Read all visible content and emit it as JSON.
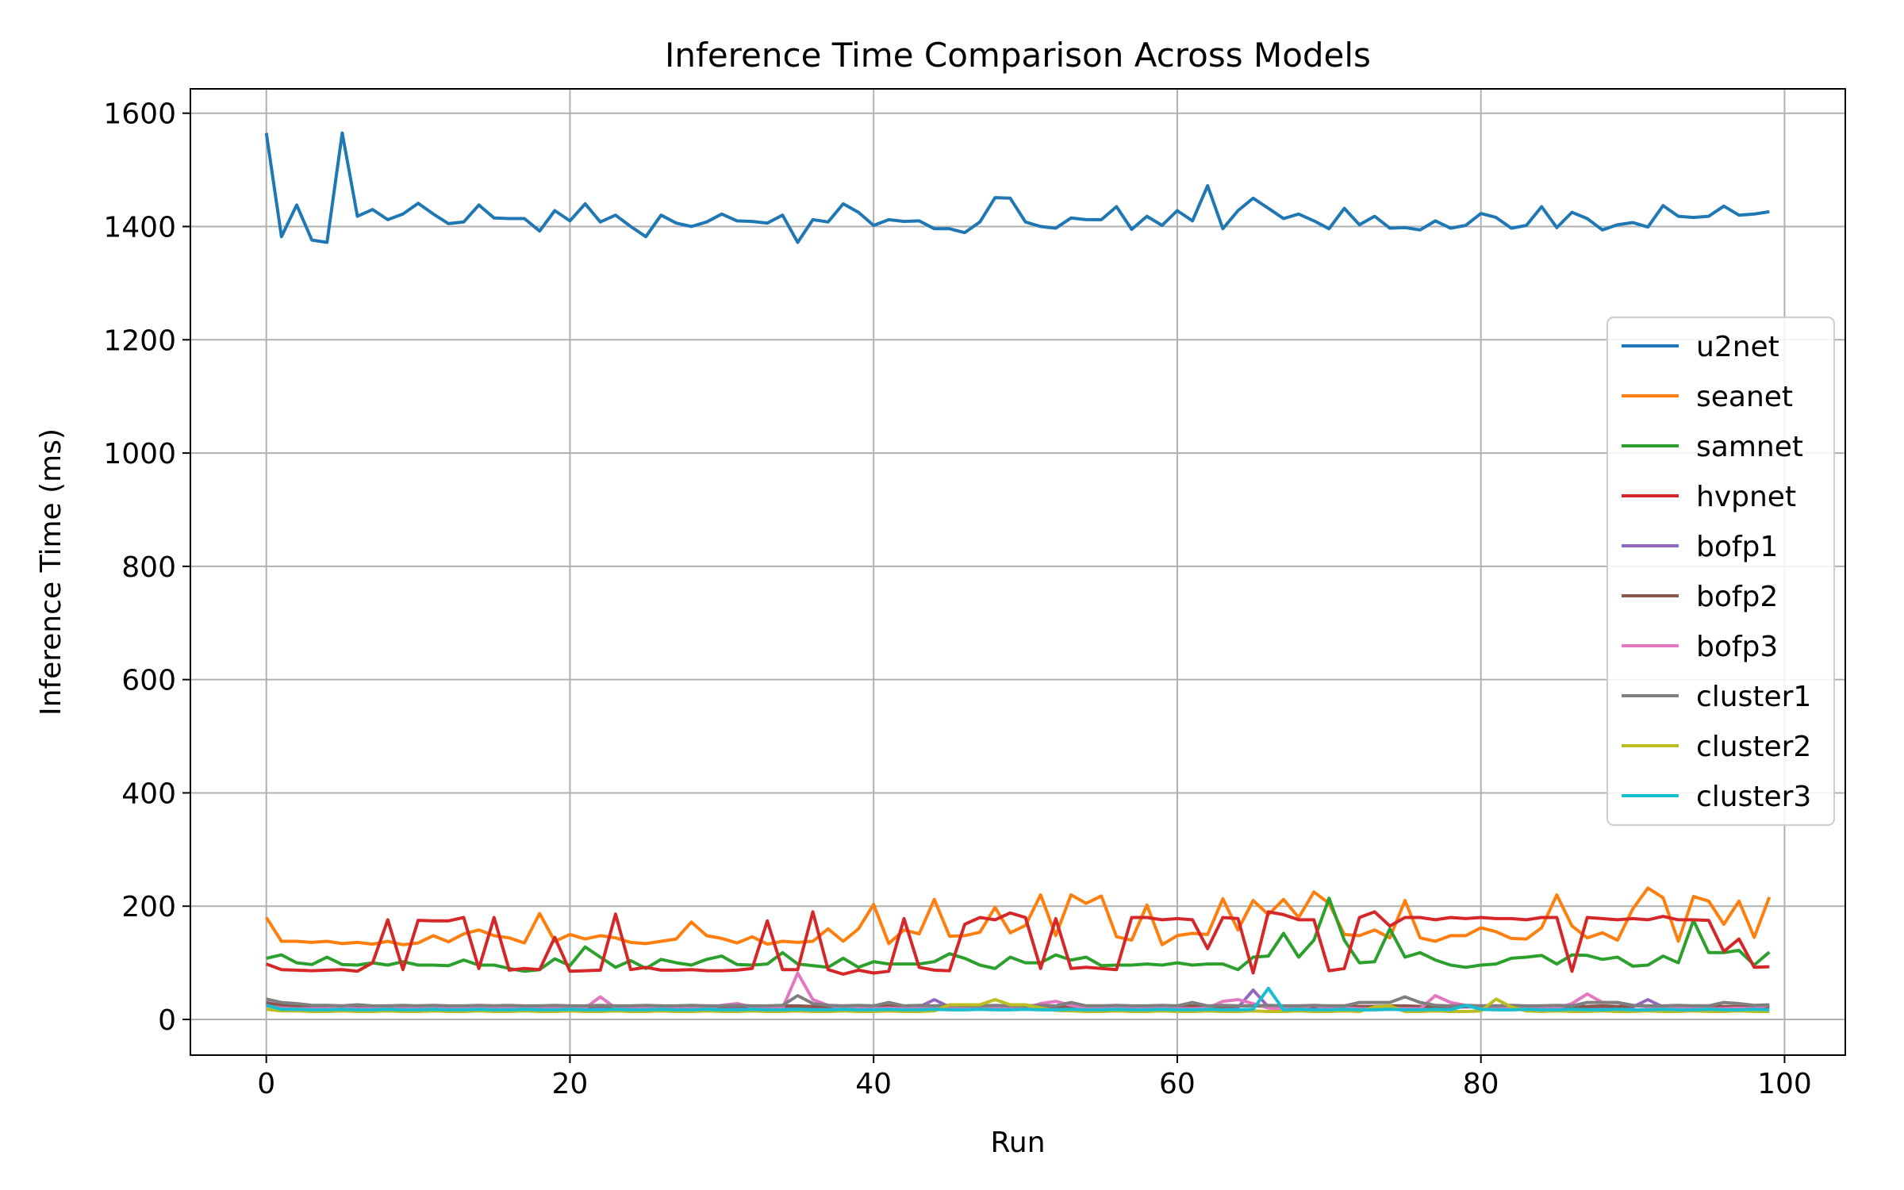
{
  "chart_data": {
    "type": "line",
    "title": "Inference Time Comparison Across Models",
    "xlabel": "Run",
    "ylabel": "Inference Time (ms)",
    "xlim": [
      -5,
      104
    ],
    "ylim": [
      -63,
      1643
    ],
    "xticks": [
      0,
      20,
      40,
      60,
      80,
      100
    ],
    "yticks": [
      0,
      200,
      400,
      600,
      800,
      1000,
      1200,
      1400,
      1600
    ],
    "grid": true,
    "legend": "center-right",
    "series": [
      {
        "name": "u2net",
        "color": "#1f77b4",
        "values": [
          1565,
          1382,
          1438,
          1376,
          1372,
          1565,
          1418,
          1430,
          1412,
          1422,
          1441,
          1422,
          1405,
          1408,
          1438,
          1415,
          1414,
          1414,
          1392,
          1428,
          1410,
          1440,
          1408,
          1420,
          1400,
          1382,
          1420,
          1406,
          1400,
          1408,
          1422,
          1410,
          1409,
          1406,
          1420,
          1372,
          1412,
          1408,
          1440,
          1425,
          1402,
          1412,
          1409,
          1410,
          1396,
          1396,
          1389,
          1408,
          1451,
          1450,
          1408,
          1400,
          1397,
          1415,
          1412,
          1412,
          1435,
          1395,
          1418,
          1402,
          1428,
          1410,
          1472,
          1396,
          1428,
          1450,
          1432,
          1414,
          1422,
          1410,
          1396,
          1432,
          1403,
          1418,
          1397,
          1398,
          1394,
          1410,
          1397,
          1402,
          1423,
          1416,
          1397,
          1402,
          1435,
          1398,
          1425,
          1414,
          1394,
          1403,
          1407,
          1399,
          1437,
          1418,
          1416,
          1418,
          1436,
          1420,
          1422,
          1426
        ]
      },
      {
        "name": "seanet",
        "color": "#ff7f0e",
        "values": [
          180,
          138,
          138,
          136,
          138,
          134,
          136,
          133,
          138,
          132,
          135,
          148,
          137,
          151,
          158,
          148,
          144,
          135,
          187,
          138,
          150,
          142,
          148,
          144,
          136,
          134,
          138,
          142,
          172,
          148,
          143,
          135,
          146,
          133,
          138,
          136,
          138,
          160,
          138,
          160,
          203,
          134,
          158,
          151,
          212,
          147,
          148,
          154,
          198,
          153,
          166,
          220,
          148,
          220,
          205,
          218,
          146,
          140,
          202,
          132,
          148,
          152,
          150,
          213,
          158,
          210,
          185,
          212,
          180,
          225,
          205,
          150,
          148,
          158,
          144,
          210,
          144,
          138,
          148,
          148,
          162,
          155,
          143,
          142,
          162,
          220,
          165,
          144,
          153,
          140,
          195,
          232,
          215,
          138,
          217,
          209,
          168,
          209,
          145,
          216
        ]
      },
      {
        "name": "samnet",
        "color": "#2ca02c",
        "values": [
          108,
          114,
          100,
          97,
          110,
          97,
          96,
          100,
          96,
          102,
          96,
          96,
          95,
          105,
          96,
          96,
          90,
          85,
          88,
          107,
          95,
          128,
          110,
          92,
          104,
          90,
          106,
          100,
          96,
          106,
          112,
          97,
          96,
          98,
          118,
          98,
          95,
          92,
          108,
          92,
          102,
          98,
          98,
          98,
          102,
          116,
          108,
          96,
          90,
          110,
          100,
          100,
          114,
          105,
          110,
          95,
          96,
          96,
          98,
          96,
          100,
          96,
          98,
          98,
          88,
          110,
          112,
          152,
          110,
          140,
          214,
          140,
          100,
          102,
          160,
          110,
          118,
          105,
          96,
          92,
          96,
          98,
          108,
          110,
          113,
          98,
          114,
          113,
          106,
          110,
          94,
          96,
          112,
          100,
          175,
          118,
          118,
          122,
          96,
          119
        ]
      },
      {
        "name": "hvpnet",
        "color": "#d62728",
        "values": [
          98,
          88,
          87,
          86,
          87,
          88,
          85,
          100,
          176,
          88,
          175,
          174,
          174,
          180,
          90,
          180,
          87,
          90,
          88,
          145,
          85,
          86,
          87,
          186,
          88,
          92,
          87,
          87,
          88,
          86,
          86,
          87,
          90,
          174,
          88,
          88,
          190,
          88,
          80,
          87,
          82,
          85,
          178,
          92,
          87,
          86,
          168,
          180,
          176,
          188,
          180,
          90,
          178,
          90,
          92,
          90,
          88,
          180,
          180,
          176,
          178,
          176,
          125,
          180,
          178,
          82,
          190,
          185,
          176,
          176,
          86,
          90,
          180,
          190,
          165,
          180,
          180,
          176,
          180,
          178,
          180,
          178,
          178,
          176,
          180,
          180,
          85,
          180,
          178,
          176,
          178,
          176,
          182,
          176,
          176,
          175,
          120,
          142,
          92,
          93
        ]
      },
      {
        "name": "bofp1",
        "color": "#9467bd",
        "values": [
          30,
          24,
          22,
          22,
          21,
          22,
          21,
          22,
          22,
          22,
          21,
          22,
          22,
          21,
          22,
          22,
          22,
          22,
          21,
          22,
          22,
          22,
          22,
          21,
          22,
          22,
          22,
          21,
          22,
          22,
          22,
          21,
          22,
          22,
          22,
          22,
          22,
          21,
          22,
          22,
          22,
          21,
          22,
          22,
          35,
          22,
          22,
          22,
          22,
          21,
          22,
          22,
          22,
          22,
          22,
          21,
          22,
          22,
          22,
          21,
          22,
          22,
          22,
          22,
          21,
          52,
          22,
          22,
          21,
          22,
          22,
          22,
          22,
          21,
          22,
          22,
          22,
          22,
          21,
          22,
          22,
          22,
          22,
          22,
          21,
          22,
          22,
          22,
          22,
          21,
          22,
          35,
          22,
          21,
          22,
          22,
          22,
          22,
          21,
          22
        ]
      },
      {
        "name": "bofp2",
        "color": "#8c564b",
        "values": [
          28,
          26,
          24,
          24,
          23,
          24,
          23,
          23,
          24,
          23,
          24,
          24,
          23,
          23,
          24,
          24,
          23,
          23,
          24,
          23,
          24,
          23,
          24,
          23,
          23,
          24,
          24,
          23,
          23,
          24,
          23,
          24,
          23,
          23,
          24,
          24,
          23,
          23,
          24,
          23,
          24,
          24,
          23,
          23,
          24,
          24,
          23,
          23,
          24,
          23,
          24,
          24,
          23,
          23,
          24,
          24,
          23,
          23,
          24,
          23,
          24,
          24,
          23,
          23,
          24,
          24,
          23,
          23,
          24,
          23,
          24,
          24,
          23,
          23,
          24,
          24,
          23,
          23,
          24,
          23,
          24,
          24,
          23,
          23,
          24,
          24,
          23,
          23,
          24,
          23,
          24,
          24,
          23,
          23,
          24,
          24,
          23,
          23,
          24,
          23
        ]
      },
      {
        "name": "bofp3",
        "color": "#e377c2",
        "values": [
          24,
          20,
          19,
          19,
          19,
          20,
          19,
          19,
          20,
          19,
          19,
          20,
          19,
          19,
          20,
          19,
          19,
          20,
          19,
          19,
          20,
          20,
          40,
          20,
          19,
          19,
          20,
          19,
          19,
          20,
          25,
          28,
          22,
          20,
          20,
          82,
          35,
          25,
          20,
          20,
          19,
          20,
          19,
          19,
          20,
          19,
          19,
          20,
          19,
          19,
          20,
          28,
          32,
          25,
          20,
          19,
          20,
          19,
          19,
          20,
          19,
          19,
          20,
          32,
          35,
          28,
          20,
          19,
          20,
          25,
          19,
          20,
          19,
          19,
          20,
          19,
          19,
          42,
          30,
          25,
          20,
          19,
          20,
          19,
          19,
          20,
          28,
          45,
          30,
          30,
          25,
          22,
          20,
          19,
          20,
          19,
          19,
          20,
          19,
          26
        ]
      },
      {
        "name": "cluster1",
        "color": "#7f7f7f",
        "values": [
          36,
          30,
          28,
          25,
          25,
          24,
          26,
          24,
          24,
          25,
          24,
          25,
          24,
          24,
          25,
          24,
          25,
          24,
          24,
          25,
          24,
          24,
          25,
          24,
          24,
          25,
          24,
          24,
          25,
          24,
          24,
          25,
          24,
          24,
          25,
          42,
          28,
          25,
          24,
          25,
          24,
          30,
          24,
          25,
          24,
          25,
          24,
          24,
          25,
          24,
          24,
          25,
          24,
          30,
          24,
          24,
          25,
          24,
          24,
          25,
          24,
          30,
          24,
          25,
          24,
          24,
          25,
          24,
          24,
          25,
          24,
          24,
          30,
          30,
          30,
          40,
          30,
          25,
          24,
          25,
          24,
          24,
          25,
          24,
          24,
          25,
          24,
          30,
          30,
          30,
          25,
          24,
          24,
          25,
          24,
          24,
          30,
          28,
          25,
          26
        ]
      },
      {
        "name": "cluster2",
        "color": "#bcbd22",
        "values": [
          18,
          15,
          15,
          14,
          14,
          15,
          14,
          14,
          15,
          14,
          14,
          15,
          14,
          14,
          15,
          14,
          14,
          15,
          14,
          14,
          15,
          14,
          14,
          15,
          14,
          14,
          15,
          14,
          14,
          15,
          14,
          14,
          15,
          14,
          14,
          15,
          14,
          14,
          15,
          14,
          14,
          15,
          14,
          14,
          15,
          26,
          26,
          26,
          35,
          26,
          26,
          20,
          16,
          15,
          14,
          14,
          15,
          14,
          14,
          15,
          14,
          14,
          15,
          14,
          14,
          15,
          14,
          14,
          15,
          14,
          14,
          15,
          14,
          22,
          24,
          14,
          14,
          15,
          14,
          14,
          15,
          36,
          22,
          15,
          14,
          15,
          14,
          14,
          15,
          14,
          14,
          15,
          14,
          14,
          15,
          14,
          14,
          15,
          14,
          14
        ]
      },
      {
        "name": "cluster3",
        "color": "#17becf",
        "values": [
          25,
          18,
          18,
          17,
          17,
          18,
          17,
          17,
          18,
          17,
          17,
          18,
          17,
          17,
          18,
          17,
          17,
          18,
          17,
          17,
          18,
          17,
          17,
          18,
          17,
          17,
          18,
          17,
          17,
          18,
          17,
          17,
          18,
          17,
          17,
          18,
          17,
          17,
          18,
          17,
          17,
          18,
          17,
          17,
          18,
          17,
          17,
          18,
          17,
          17,
          18,
          17,
          17,
          18,
          17,
          17,
          18,
          17,
          17,
          18,
          17,
          17,
          18,
          17,
          17,
          18,
          55,
          17,
          18,
          17,
          17,
          18,
          17,
          17,
          18,
          17,
          17,
          18,
          17,
          25,
          18,
          17,
          17,
          18,
          17,
          17,
          18,
          17,
          17,
          18,
          17,
          17,
          18,
          17,
          17,
          18,
          17,
          17,
          18,
          17
        ]
      }
    ]
  }
}
